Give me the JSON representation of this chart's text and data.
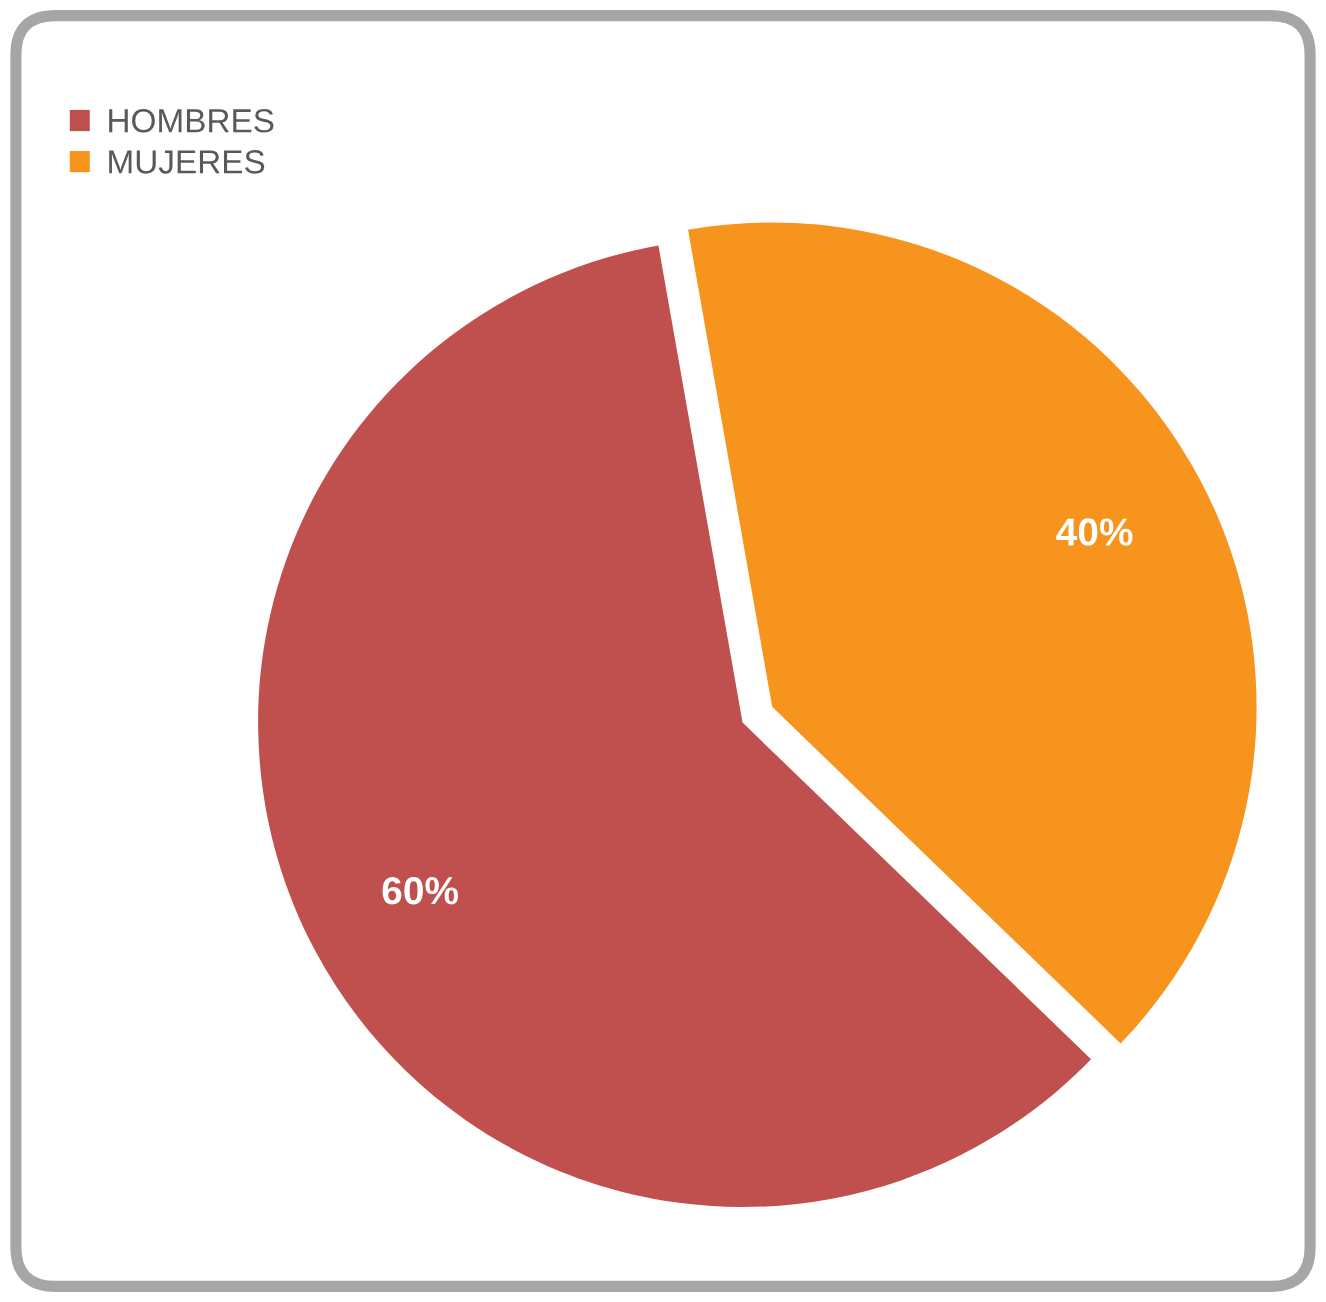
{
  "chart_data": {
    "type": "pie",
    "categories": [
      "HOMBRES",
      "MUJERES"
    ],
    "values": [
      60,
      40
    ],
    "colors": [
      "#c0504d",
      "#f7941d"
    ],
    "value_labels": [
      "60%",
      "40%"
    ],
    "legend": "top left"
  }
}
